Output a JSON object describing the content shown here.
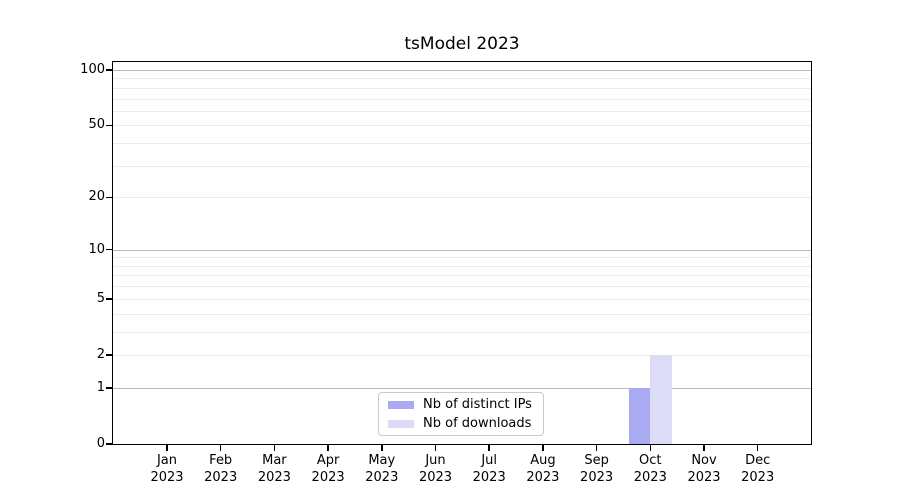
{
  "chart_data": {
    "type": "bar",
    "title": "tsModel 2023",
    "categories": [
      "Jan 2023",
      "Feb 2023",
      "Mar 2023",
      "Apr 2023",
      "May 2023",
      "Jun 2023",
      "Jul 2023",
      "Aug 2023",
      "Sep 2023",
      "Oct 2023",
      "Nov 2023",
      "Dec 2023"
    ],
    "series": [
      {
        "name": "Nb of distinct IPs",
        "color": "#a9aaf2",
        "values": [
          0,
          0,
          0,
          0,
          0,
          0,
          0,
          0,
          0,
          1,
          0,
          0
        ]
      },
      {
        "name": "Nb of downloads",
        "color": "#dcdcf6",
        "values": [
          0,
          0,
          0,
          0,
          0,
          0,
          0,
          0,
          0,
          2,
          0,
          0
        ]
      }
    ],
    "xlabel": "",
    "ylabel": "",
    "yscale": "log1p",
    "ylim": [
      0,
      110
    ],
    "yticks": [
      0,
      1,
      2,
      5,
      10,
      20,
      50,
      100
    ],
    "gridlines": {
      "major": [
        1,
        10,
        100
      ],
      "minor": [
        2,
        3,
        4,
        5,
        6,
        7,
        8,
        9,
        20,
        30,
        40,
        50,
        60,
        70,
        80,
        90
      ]
    },
    "grid": "horizontal-only",
    "legend_position": "inside-bottom-center",
    "colors": {
      "grid_major": "#b9b9b9",
      "grid_minor": "#ececec",
      "axis": "#000000",
      "legend_border": "#c9c9c9",
      "background": "#ffffff"
    }
  }
}
